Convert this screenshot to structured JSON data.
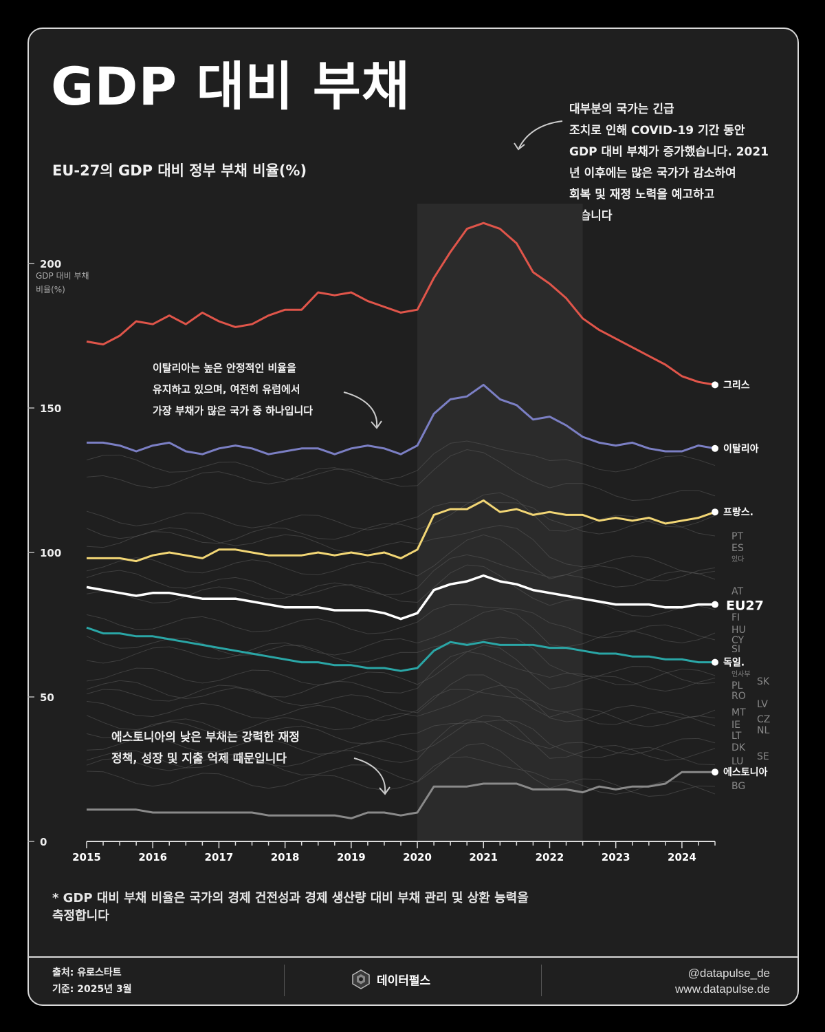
{
  "title": "GDP 대비 부채",
  "subtitle": "EU-27의 GDP 대비 정부 부채 비율(%)",
  "annotations": {
    "covid": [
      "대부분의 국가는 긴급",
      "조치로 인해 COVID-19 기간 동안",
      "GDP 대비 부채가 증가했습니다. 2021",
      "년 이후에는 많은 국가가 감소하여",
      "회복 및 재정 노력을 예고하고",
      "있습니다"
    ],
    "italy": [
      "이탈리아는 높은 안정적인 비율을",
      "유지하고 있으며, 여전히 유럽에서",
      "가장 부채가 많은 국가 중 하나입니다"
    ],
    "estonia": [
      "에스토니아의 낮은 부채는 강력한 재정",
      "정책, 성장 및 지출 억제 때문입니다"
    ]
  },
  "note": [
    "* GDP 대비 부채 비율은 국가의 경제 건전성과 경제 생산량 대비 부채 관리 및 상환 능력을",
    "측정합니다"
  ],
  "footer": {
    "source": "출처: 유로스타트",
    "date": "기준: 2025년 3월",
    "brand": "데이터펄스",
    "handle": "@datapulse_de",
    "website": "www.datapulse.de"
  },
  "colors": {
    "greece": "#e0554a",
    "italy": "#7b7fc4",
    "france": "#f2d675",
    "eu27": "#ffffff",
    "germany": "#2aa6a6",
    "estonia": "#8a8a8a",
    "background_lines": "#555555",
    "covid_band": "#2b2b2b"
  },
  "chart_data": {
    "type": "line",
    "ylabel": "GDP 대비 부채 비율(%)",
    "ylim": [
      0,
      200
    ],
    "y_ticks": [
      0,
      50,
      100,
      150,
      200
    ],
    "x_ticks": [
      "2015",
      "2016",
      "2017",
      "2018",
      "2019",
      "2020",
      "2021",
      "2022",
      "2023",
      "2024"
    ],
    "x_start": 2015,
    "x_end": 2024.5,
    "shaded_period": [
      2020,
      2022.5
    ],
    "x": [
      2015,
      2015.25,
      2015.5,
      2015.75,
      2016,
      2016.25,
      2016.5,
      2016.75,
      2017,
      2017.25,
      2017.5,
      2017.75,
      2018,
      2018.25,
      2018.5,
      2018.75,
      2019,
      2019.25,
      2019.5,
      2019.75,
      2020,
      2020.25,
      2020.5,
      2020.75,
      2021,
      2021.25,
      2021.5,
      2021.75,
      2022,
      2022.25,
      2022.5,
      2022.75,
      2023,
      2023.25,
      2023.5,
      2023.75,
      2024,
      2024.25,
      2024.5
    ],
    "series": [
      {
        "name": "그리스",
        "key": "greece",
        "values": [
          173,
          172,
          175,
          180,
          179,
          182,
          179,
          183,
          180,
          178,
          179,
          182,
          184,
          184,
          190,
          189,
          190,
          187,
          185,
          183,
          184,
          195,
          204,
          212,
          214,
          212,
          207,
          197,
          193,
          188,
          181,
          177,
          174,
          171,
          168,
          165,
          161,
          159,
          158
        ]
      },
      {
        "name": "이탈리아",
        "key": "italy",
        "values": [
          138,
          138,
          137,
          135,
          137,
          138,
          135,
          134,
          136,
          137,
          136,
          134,
          135,
          136,
          136,
          134,
          136,
          137,
          136,
          134,
          137,
          148,
          153,
          154,
          158,
          153,
          151,
          146,
          147,
          144,
          140,
          138,
          137,
          138,
          136,
          135,
          135,
          137,
          136
        ]
      },
      {
        "name": "프랑스.",
        "key": "france",
        "values": [
          98,
          98,
          98,
          97,
          99,
          100,
          99,
          98,
          101,
          101,
          100,
          99,
          99,
          99,
          100,
          99,
          100,
          99,
          100,
          98,
          101,
          113,
          115,
          115,
          118,
          114,
          115,
          113,
          114,
          113,
          113,
          111,
          112,
          111,
          112,
          110,
          111,
          112,
          114
        ]
      },
      {
        "name": "EU27",
        "key": "eu27",
        "values": [
          88,
          87,
          86,
          85,
          86,
          86,
          85,
          84,
          84,
          84,
          83,
          82,
          81,
          81,
          81,
          80,
          80,
          80,
          79,
          77,
          79,
          87,
          89,
          90,
          92,
          90,
          89,
          87,
          86,
          85,
          84,
          83,
          82,
          82,
          82,
          81,
          81,
          82,
          82
        ]
      },
      {
        "name": "독일.",
        "key": "germany",
        "values": [
          74,
          72,
          72,
          71,
          71,
          70,
          69,
          68,
          67,
          66,
          65,
          64,
          63,
          62,
          62,
          61,
          61,
          60,
          60,
          59,
          60,
          66,
          69,
          68,
          69,
          68,
          68,
          68,
          67,
          67,
          66,
          65,
          65,
          64,
          64,
          63,
          63,
          62,
          62
        ]
      },
      {
        "name": "에스토니아",
        "key": "estonia",
        "values": [
          11,
          11,
          11,
          11,
          10,
          10,
          10,
          10,
          10,
          10,
          10,
          9,
          9,
          9,
          9,
          9,
          8,
          10,
          10,
          9,
          10,
          19,
          19,
          19,
          20,
          20,
          20,
          18,
          18,
          18,
          17,
          19,
          18,
          19,
          19,
          20,
          24,
          24,
          24
        ]
      }
    ],
    "other_country_labels": [
      "PT",
      "ES",
      "있다",
      "AT",
      "FI",
      "HU",
      "CY",
      "SI",
      "인사부",
      "SK",
      "PL",
      "RO",
      "LV",
      "MT",
      "CZ",
      "IE",
      "NL",
      "LT",
      "DK",
      "SE",
      "LU",
      "BG"
    ]
  }
}
